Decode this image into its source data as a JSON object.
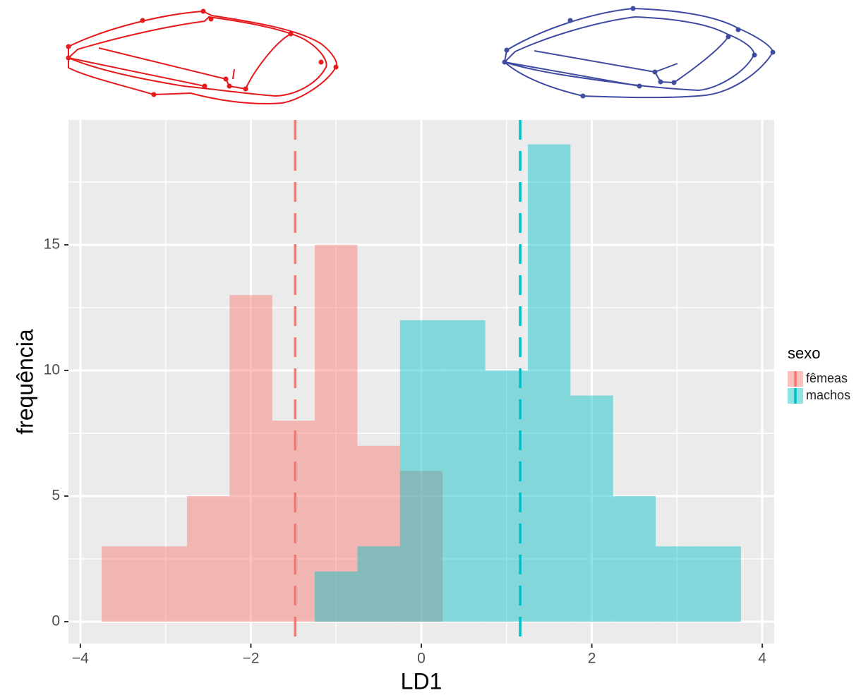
{
  "chart_data": {
    "type": "histogram",
    "x_label": "LD1",
    "y_label": "frequência",
    "legend_title": "sexo",
    "legend_position": "right",
    "grid": true,
    "xlim": [
      -4.14,
      4.14
    ],
    "ylim": [
      -0.87,
      19.97
    ],
    "xticks": [
      {
        "value": -4,
        "label": "−4"
      },
      {
        "value": -2,
        "label": "−2"
      },
      0,
      2,
      4
    ],
    "yticks": [
      0,
      5,
      10,
      15
    ],
    "minor_xticks": [
      -3,
      -1,
      1,
      3
    ],
    "minor_yticks": [
      2.5,
      7.5,
      12.5,
      17.5
    ],
    "series": [
      {
        "name": "fêmeas",
        "color": "#F8766D",
        "bins": [
          -3.75,
          -3.25,
          -2.75,
          -2.25,
          -1.75,
          -1.25,
          -0.75,
          -0.25,
          0.25
        ],
        "values": [
          3,
          3,
          5,
          13,
          8,
          15,
          7,
          6
        ],
        "mean": -1.48
      },
      {
        "name": "machos",
        "color": "#00BFC4",
        "bins": [
          -1.25,
          -0.75,
          -0.25,
          0.25,
          0.75,
          1.25,
          1.75,
          2.25,
          2.75,
          3.25,
          3.75
        ],
        "values": [
          2,
          3,
          12,
          12,
          10,
          19,
          9,
          5,
          3,
          3
        ],
        "mean": 1.16
      }
    ]
  }
}
